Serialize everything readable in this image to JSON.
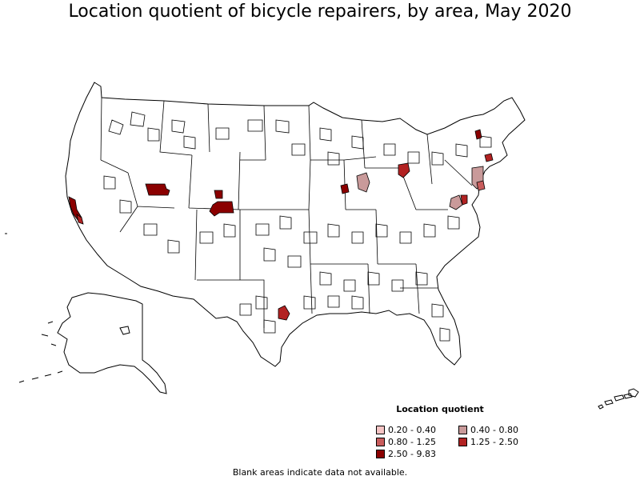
{
  "title": "Location quotient of bicycle repairers, by area, May 2020",
  "legend": {
    "title": "Location quotient",
    "items": [
      {
        "label": "0.20 - 0.40",
        "color": "#f5c4c4"
      },
      {
        "label": "0.40 - 0.80",
        "color": "#c99a9a"
      },
      {
        "label": "0.80 - 1.25",
        "color": "#c85c5c"
      },
      {
        "label": "1.25 - 2.50",
        "color": "#b22222"
      },
      {
        "label": "2.50 - 9.83",
        "color": "#8b0000"
      }
    ]
  },
  "note": "Blank areas indicate data not available.",
  "map": {
    "base_fill": "#ffffff",
    "border_color": "#000000",
    "highlighted_areas": [
      {
        "name": "San Francisco Bay Area",
        "class": "2.50 - 9.83"
      },
      {
        "name": "Salinas area",
        "class": "1.25 - 2.50"
      },
      {
        "name": "Salt Lake City area",
        "class": "2.50 - 9.83"
      },
      {
        "name": "Boulder area",
        "class": "2.50 - 9.83"
      },
      {
        "name": "Denver area",
        "class": "2.50 - 9.83"
      },
      {
        "name": "Austin area",
        "class": "1.25 - 2.50"
      },
      {
        "name": "Madison area",
        "class": "2.50 - 9.83"
      },
      {
        "name": "Chicago area",
        "class": "0.40 - 0.80"
      },
      {
        "name": "Detroit area",
        "class": "1.25 - 2.50"
      },
      {
        "name": "Burlington area",
        "class": "2.50 - 9.83"
      },
      {
        "name": "Boston area",
        "class": "1.25 - 2.50"
      },
      {
        "name": "New York area",
        "class": "0.40 - 0.80"
      },
      {
        "name": "Philadelphia area",
        "class": "0.80 - 1.25"
      },
      {
        "name": "Washington DC area",
        "class": "0.40 - 0.80"
      },
      {
        "name": "Baltimore area",
        "class": "1.25 - 2.50"
      }
    ]
  }
}
